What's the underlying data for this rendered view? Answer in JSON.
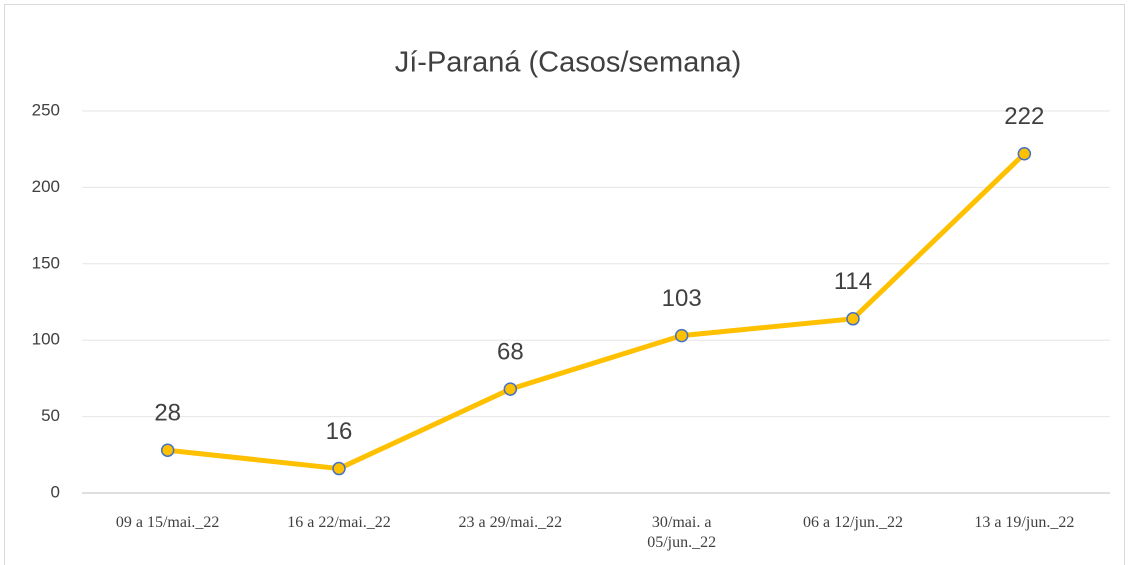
{
  "chart_data": {
    "type": "line",
    "title": "Jí-Paraná  (Casos/semana)",
    "categories": [
      "09 a 15/mai._22",
      "16 a 22/mai._22",
      "23 a 29/mai._22",
      "30/mai. a\n05/jun._22",
      "06 a 12/jun._22",
      "13 a 19/jun._22"
    ],
    "series": [
      {
        "name": "Casos/semana",
        "color": "#FFC000",
        "marker_color": "#FFC000",
        "marker_edge": "#4472C4",
        "values": [
          28,
          16,
          68,
          103,
          114,
          222
        ]
      }
    ],
    "ylim": [
      0,
      250
    ],
    "yticks": [
      0,
      50,
      100,
      150,
      200,
      250
    ],
    "grid": true
  }
}
